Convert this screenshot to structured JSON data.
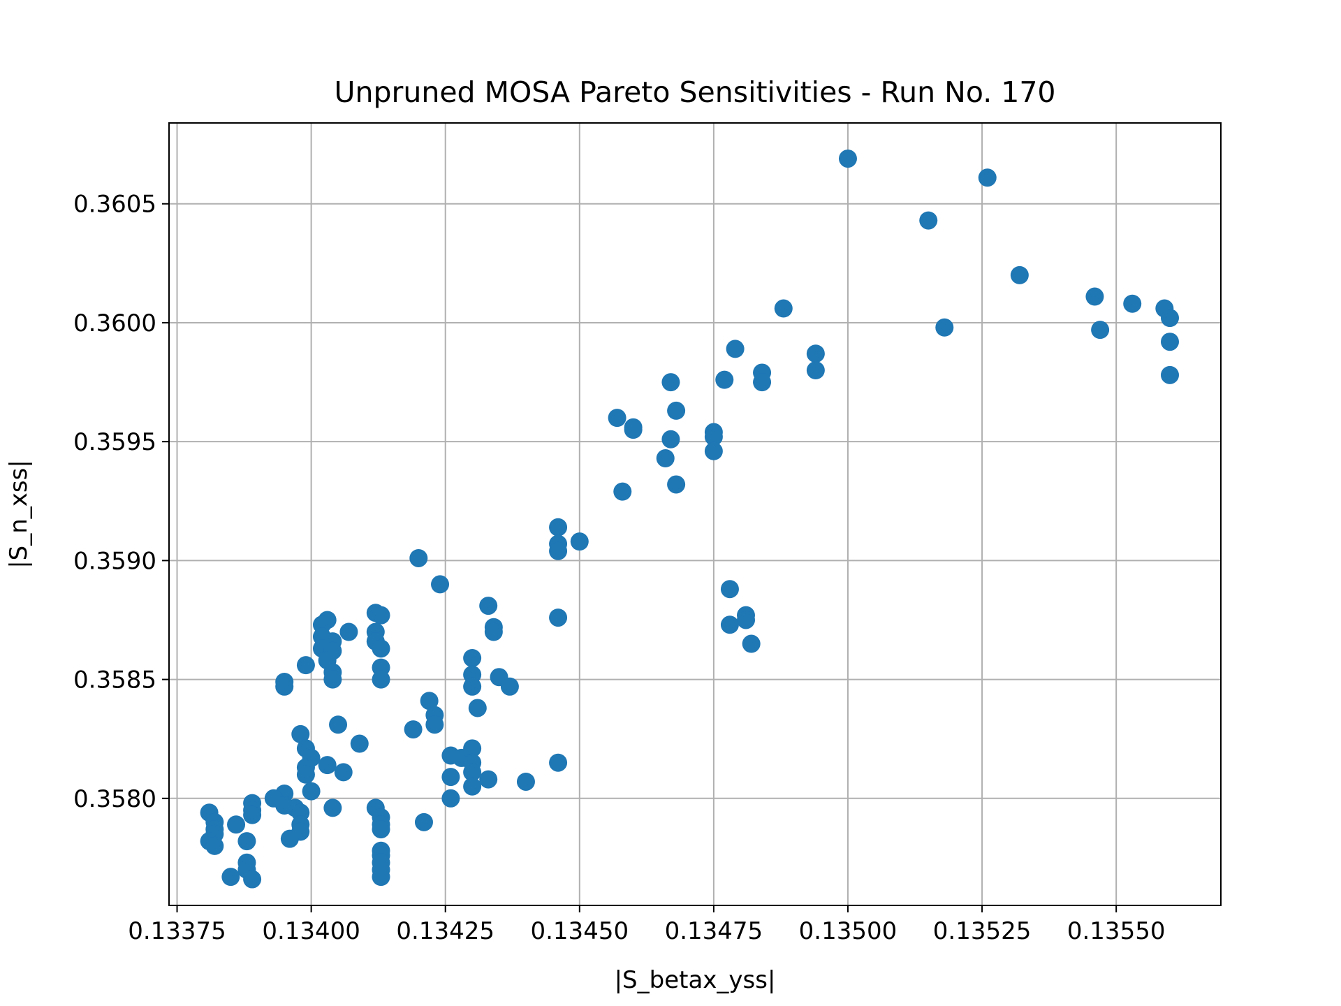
{
  "chart_data": {
    "type": "scatter",
    "title": "Unpruned MOSA Pareto Sensitivities - Run No. 170",
    "xlabel": "|S_betax_yss|",
    "ylabel": "|S_n_xss|",
    "xlim": [
      0.133735,
      0.135695
    ],
    "ylim": [
      0.35755,
      0.36084
    ],
    "grid": true,
    "marker_color": "#1f77b4",
    "x_ticks": [
      "0.13375",
      "0.13400",
      "0.13425",
      "0.13450",
      "0.13475",
      "0.13500",
      "0.13525",
      "0.13550"
    ],
    "y_ticks": [
      "0.3580",
      "0.3585",
      "0.3590",
      "0.3595",
      "0.3600",
      "0.3605"
    ],
    "points": [
      [
        0.135,
        0.36069
      ],
      [
        0.13526,
        0.36061
      ],
      [
        0.13515,
        0.36043
      ],
      [
        0.13532,
        0.3602
      ],
      [
        0.13546,
        0.36011
      ],
      [
        0.13553,
        0.36008
      ],
      [
        0.13559,
        0.36006
      ],
      [
        0.1356,
        0.36002
      ],
      [
        0.1356,
        0.35992
      ],
      [
        0.1356,
        0.35978
      ],
      [
        0.13547,
        0.35997
      ],
      [
        0.13518,
        0.35998
      ],
      [
        0.13488,
        0.36006
      ],
      [
        0.13494,
        0.35987
      ],
      [
        0.13494,
        0.3598
      ],
      [
        0.13479,
        0.35989
      ],
      [
        0.13484,
        0.35979
      ],
      [
        0.13484,
        0.35975
      ],
      [
        0.13477,
        0.35976
      ],
      [
        0.13467,
        0.35975
      ],
      [
        0.13468,
        0.35963
      ],
      [
        0.13457,
        0.3596
      ],
      [
        0.1346,
        0.35956
      ],
      [
        0.1346,
        0.35955
      ],
      [
        0.13475,
        0.35954
      ],
      [
        0.13475,
        0.35952
      ],
      [
        0.13467,
        0.35951
      ],
      [
        0.13475,
        0.35946
      ],
      [
        0.13466,
        0.35943
      ],
      [
        0.13468,
        0.35932
      ],
      [
        0.13458,
        0.35929
      ],
      [
        0.13446,
        0.35914
      ],
      [
        0.13446,
        0.35907
      ],
      [
        0.13446,
        0.35904
      ],
      [
        0.1345,
        0.35908
      ],
      [
        0.13446,
        0.35876
      ],
      [
        0.13478,
        0.35888
      ],
      [
        0.13478,
        0.35873
      ],
      [
        0.13481,
        0.35877
      ],
      [
        0.13481,
        0.35875
      ],
      [
        0.13482,
        0.35865
      ],
      [
        0.1342,
        0.35901
      ],
      [
        0.13424,
        0.3589
      ],
      [
        0.13433,
        0.35881
      ],
      [
        0.13434,
        0.35872
      ],
      [
        0.13434,
        0.3587
      ],
      [
        0.1343,
        0.35859
      ],
      [
        0.1343,
        0.35852
      ],
      [
        0.1343,
        0.35847
      ],
      [
        0.13435,
        0.35851
      ],
      [
        0.13437,
        0.35847
      ],
      [
        0.13431,
        0.35838
      ],
      [
        0.13422,
        0.35841
      ],
      [
        0.13423,
        0.35835
      ],
      [
        0.13423,
        0.35831
      ],
      [
        0.13419,
        0.35829
      ],
      [
        0.1343,
        0.35821
      ],
      [
        0.13426,
        0.35818
      ],
      [
        0.13428,
        0.35817
      ],
      [
        0.1343,
        0.35815
      ],
      [
        0.1343,
        0.35811
      ],
      [
        0.13433,
        0.35808
      ],
      [
        0.13426,
        0.35809
      ],
      [
        0.1343,
        0.35805
      ],
      [
        0.13426,
        0.358
      ],
      [
        0.13421,
        0.3579
      ],
      [
        0.1344,
        0.35807
      ],
      [
        0.13446,
        0.35815
      ],
      [
        0.13412,
        0.35878
      ],
      [
        0.13413,
        0.35877
      ],
      [
        0.13412,
        0.3587
      ],
      [
        0.13412,
        0.35866
      ],
      [
        0.13413,
        0.35863
      ],
      [
        0.13413,
        0.35855
      ],
      [
        0.13413,
        0.3585
      ],
      [
        0.13407,
        0.3587
      ],
      [
        0.13403,
        0.35875
      ],
      [
        0.13402,
        0.35873
      ],
      [
        0.13402,
        0.35868
      ],
      [
        0.13404,
        0.35866
      ],
      [
        0.13402,
        0.35863
      ],
      [
        0.13404,
        0.35862
      ],
      [
        0.13403,
        0.35858
      ],
      [
        0.13404,
        0.35853
      ],
      [
        0.13404,
        0.3585
      ],
      [
        0.13399,
        0.35856
      ],
      [
        0.13395,
        0.35849
      ],
      [
        0.13395,
        0.35847
      ],
      [
        0.13405,
        0.35831
      ],
      [
        0.13398,
        0.35827
      ],
      [
        0.13409,
        0.35823
      ],
      [
        0.13399,
        0.35821
      ],
      [
        0.134,
        0.35817
      ],
      [
        0.13399,
        0.35813
      ],
      [
        0.13403,
        0.35814
      ],
      [
        0.13399,
        0.3581
      ],
      [
        0.13406,
        0.35811
      ],
      [
        0.134,
        0.35803
      ],
      [
        0.13395,
        0.35802
      ],
      [
        0.13393,
        0.358
      ],
      [
        0.13404,
        0.35796
      ],
      [
        0.13395,
        0.35797
      ],
      [
        0.13397,
        0.35796
      ],
      [
        0.13398,
        0.35794
      ],
      [
        0.13398,
        0.35789
      ],
      [
        0.13398,
        0.35786
      ],
      [
        0.13396,
        0.35783
      ],
      [
        0.13412,
        0.35796
      ],
      [
        0.13413,
        0.35792
      ],
      [
        0.13413,
        0.35789
      ],
      [
        0.13413,
        0.35787
      ],
      [
        0.13413,
        0.35778
      ],
      [
        0.13413,
        0.35776
      ],
      [
        0.13413,
        0.35773
      ],
      [
        0.13413,
        0.3577
      ],
      [
        0.13413,
        0.35767
      ],
      [
        0.13389,
        0.35798
      ],
      [
        0.13389,
        0.35795
      ],
      [
        0.13389,
        0.35793
      ],
      [
        0.13386,
        0.35789
      ],
      [
        0.13381,
        0.35794
      ],
      [
        0.13382,
        0.3579
      ],
      [
        0.13382,
        0.35787
      ],
      [
        0.13382,
        0.35785
      ],
      [
        0.13381,
        0.35782
      ],
      [
        0.13382,
        0.3578
      ],
      [
        0.13388,
        0.35782
      ],
      [
        0.13388,
        0.35773
      ],
      [
        0.13388,
        0.3577
      ],
      [
        0.13385,
        0.35767
      ],
      [
        0.13389,
        0.35766
      ]
    ]
  }
}
